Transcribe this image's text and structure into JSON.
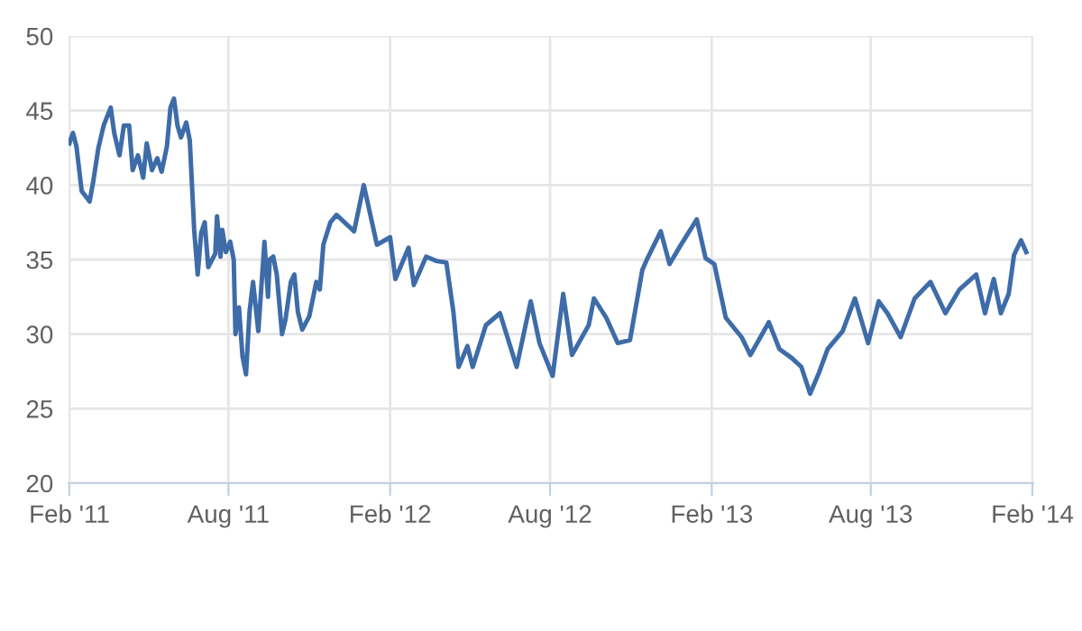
{
  "chart_data": {
    "type": "line",
    "line_style": "solid",
    "marker": "none",
    "grid": true,
    "xlim": [
      "2011-01-31",
      "2014-02-02"
    ],
    "ylim": [
      20,
      50
    ],
    "yticks": [
      20,
      25,
      30,
      35,
      40,
      45,
      50
    ],
    "xticks": [
      {
        "value": "2011-02-01",
        "label": "Feb '11"
      },
      {
        "value": "2011-08-01",
        "label": "Aug '11"
      },
      {
        "value": "2012-02-01",
        "label": "Feb '12"
      },
      {
        "value": "2012-08-01",
        "label": "Aug '12"
      },
      {
        "value": "2013-02-01",
        "label": "Feb '13"
      },
      {
        "value": "2013-08-01",
        "label": "Aug '13"
      },
      {
        "value": "2014-02-01",
        "label": "Feb '14"
      }
    ],
    "series": [
      {
        "color": "#3e6ca8",
        "x": [
          "2011-02-01",
          "2011-02-05",
          "2011-02-09",
          "2011-02-15",
          "2011-02-24",
          "2011-02-28",
          "2011-03-06",
          "2011-03-12",
          "2011-03-20",
          "2011-03-24",
          "2011-03-30",
          "2011-04-04",
          "2011-04-10",
          "2011-04-14",
          "2011-04-20",
          "2011-04-26",
          "2011-04-30",
          "2011-05-06",
          "2011-05-12",
          "2011-05-17",
          "2011-05-23",
          "2011-05-27",
          "2011-05-31",
          "2011-06-04",
          "2011-06-08",
          "2011-06-14",
          "2011-06-18",
          "2011-06-23",
          "2011-06-27",
          "2011-07-01",
          "2011-07-05",
          "2011-07-09",
          "2011-07-17",
          "2011-07-19",
          "2011-07-23",
          "2011-07-25",
          "2011-07-29",
          "2011-08-03",
          "2011-08-07",
          "2011-08-09",
          "2011-08-13",
          "2011-08-17",
          "2011-08-21",
          "2011-08-25",
          "2011-08-29",
          "2011-09-04",
          "2011-09-11",
          "2011-09-15",
          "2011-09-17",
          "2011-09-21",
          "2011-09-25",
          "2011-10-01",
          "2011-10-05",
          "2011-10-11",
          "2011-10-15",
          "2011-10-19",
          "2011-10-24",
          "2011-11-01",
          "2011-11-09",
          "2011-11-13",
          "2011-11-17",
          "2011-11-25",
          "2011-12-02",
          "2011-12-22",
          "2012-01-02",
          "2012-01-17",
          "2012-02-01",
          "2012-02-07",
          "2012-02-22",
          "2012-02-28",
          "2012-03-13",
          "2012-03-25",
          "2012-04-05",
          "2012-04-13",
          "2012-04-19",
          "2012-04-29",
          "2012-05-05",
          "2012-05-20",
          "2012-06-05",
          "2012-06-24",
          "2012-07-10",
          "2012-07-20",
          "2012-08-04",
          "2012-08-16",
          "2012-08-26",
          "2012-09-14",
          "2012-09-20",
          "2012-10-04",
          "2012-10-17",
          "2012-10-31",
          "2012-11-14",
          "2012-11-20",
          "2012-12-05",
          "2012-12-15",
          "2012-12-27",
          "2013-01-15",
          "2013-01-25",
          "2013-02-04",
          "2013-02-17",
          "2013-03-07",
          "2013-03-17",
          "2013-04-07",
          "2013-04-19",
          "2013-05-03",
          "2013-05-14",
          "2013-05-24",
          "2013-06-03",
          "2013-06-13",
          "2013-06-30",
          "2013-07-14",
          "2013-07-29",
          "2013-08-10",
          "2013-08-20",
          "2013-09-04",
          "2013-09-20",
          "2013-10-08",
          "2013-10-25",
          "2013-11-10",
          "2013-11-29",
          "2013-12-09",
          "2013-12-19",
          "2013-12-27",
          "2014-01-05",
          "2014-01-11",
          "2014-01-19",
          "2014-01-25"
        ],
        "values": [
          42.8,
          43.5,
          42.6,
          39.6,
          38.9,
          40.2,
          42.5,
          44.0,
          45.2,
          43.5,
          42.0,
          44.0,
          44.0,
          41.0,
          42.0,
          40.5,
          42.8,
          41.0,
          41.8,
          40.9,
          42.6,
          45.2,
          45.8,
          44.0,
          43.2,
          44.2,
          43.0,
          37.0,
          34.0,
          36.8,
          37.5,
          34.5,
          35.4,
          37.9,
          35.2,
          37.0,
          35.5,
          36.2,
          35.0,
          30.0,
          31.8,
          28.5,
          27.3,
          31.5,
          33.5,
          30.2,
          36.2,
          32.5,
          35.0,
          35.2,
          34.0,
          30.0,
          31.0,
          33.5,
          34.0,
          31.5,
          30.3,
          31.2,
          33.5,
          33.0,
          36.0,
          37.5,
          38.0,
          36.9,
          40.0,
          36.0,
          36.5,
          33.7,
          35.8,
          33.3,
          35.2,
          34.9,
          34.8,
          31.5,
          27.8,
          29.2,
          27.8,
          30.6,
          31.4,
          27.8,
          32.2,
          29.4,
          27.2,
          32.7,
          28.6,
          30.6,
          32.4,
          31.1,
          29.4,
          29.6,
          34.3,
          35.1,
          36.9,
          34.7,
          35.9,
          37.7,
          35.1,
          34.7,
          31.1,
          29.8,
          28.6,
          30.8,
          29.0,
          28.4,
          27.8,
          26.0,
          27.4,
          29.0,
          30.2,
          32.4,
          29.4,
          32.2,
          31.4,
          29.8,
          32.4,
          33.5,
          31.4,
          33.0,
          34.0,
          31.4,
          33.7,
          31.4,
          32.7,
          35.3,
          36.3,
          35.5
        ]
      }
    ]
  }
}
